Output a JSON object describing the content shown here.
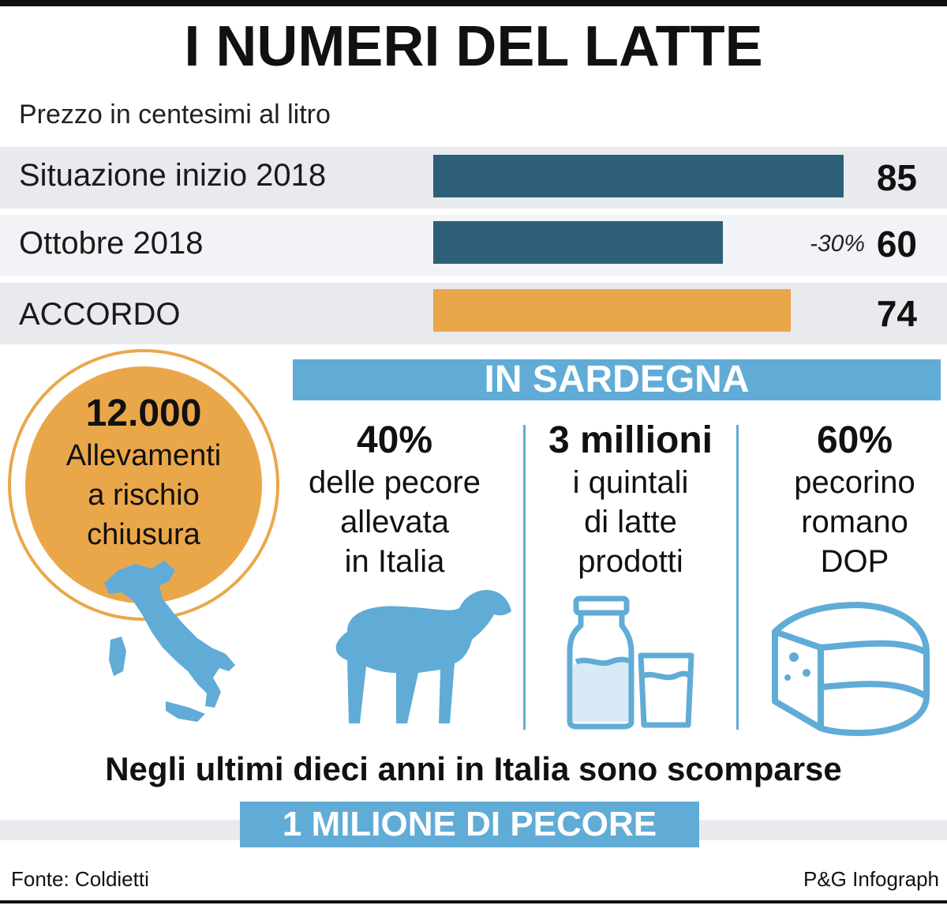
{
  "title": "I NUMERI DEL LATTE",
  "subtitle": "Prezzo in centesimi al litro",
  "colors": {
    "dark_bar": "#2e5f78",
    "accent_bar": "#eaa74a",
    "blue": "#60acd6",
    "row_bg": "#e8eaee"
  },
  "chart_data": {
    "type": "bar",
    "orientation": "horizontal",
    "categories": [
      "Situazione inizio 2018",
      "Ottobre 2018",
      "ACCORDO"
    ],
    "values": [
      85,
      60,
      74
    ],
    "value_labels": [
      "85",
      "60",
      "74"
    ],
    "annotations": [
      {
        "category": "Ottobre 2018",
        "text": "-30%"
      }
    ],
    "title": "I NUMERI DEL LATTE",
    "subtitle": "Prezzo in centesimi al litro",
    "bar_colors": [
      "#2e5f78",
      "#2e5f78",
      "#eaa74a"
    ],
    "xlim": [
      0,
      85
    ]
  },
  "circle": {
    "number": "12.000",
    "line1": "Allevamenti",
    "line2": "a rischio",
    "line3": "chiusura"
  },
  "sardegna": {
    "banner": "IN SARDEGNA",
    "stats": [
      {
        "big": "40%",
        "lines": [
          "delle pecore",
          "allevata",
          "in Italia"
        ],
        "icon": "sheep-icon"
      },
      {
        "big": "3 millioni",
        "lines": [
          "i quintali",
          "di latte",
          "prodotti"
        ],
        "icon": "milk-bottle-glass-icon"
      },
      {
        "big": "60%",
        "lines": [
          "pecorino",
          "romano",
          "DOP"
        ],
        "icon": "cheese-wheel-icon"
      }
    ]
  },
  "footer": {
    "statement": "Negli ultimi dieci anni in Italia sono scomparse",
    "highlight": "1 MILIONE DI PECORE",
    "source": "Fonte: Coldietti",
    "credit": "P&G Infograph"
  }
}
